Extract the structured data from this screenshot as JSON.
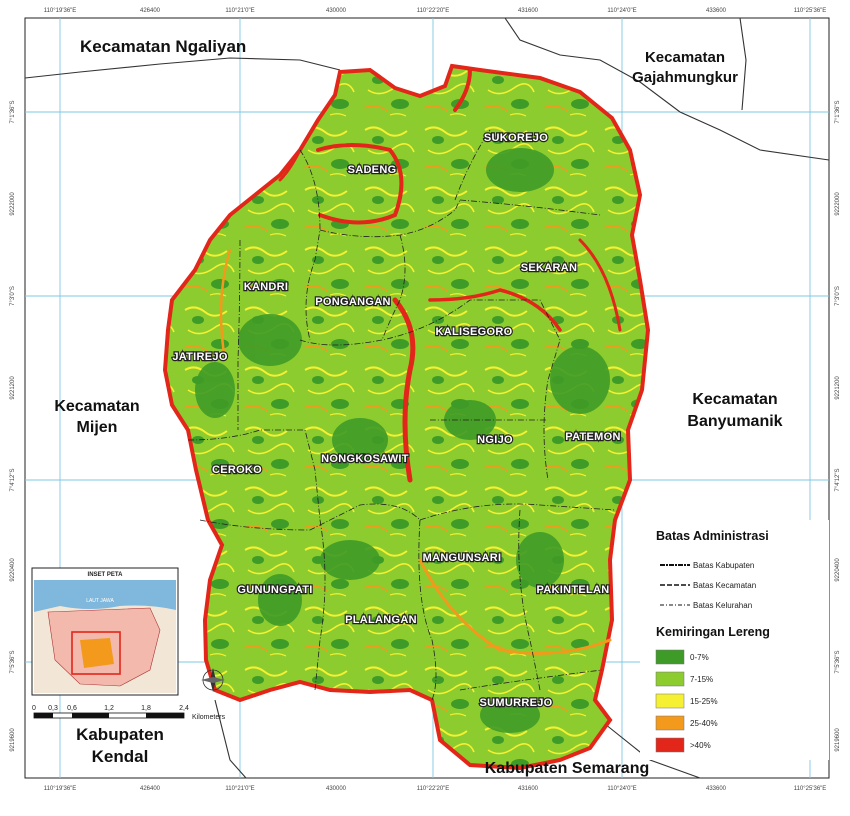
{
  "coords_top": [
    "110°19'36\"E",
    "426400",
    "110°21'0\"E",
    "430000",
    "110°22'20\"E",
    "431600",
    "110°24'0\"E",
    "433600",
    "110°25'36\"E"
  ],
  "coords_bottom": [
    "110°19'36\"E",
    "426400",
    "110°21'0\"E",
    "430000",
    "110°22'20\"E",
    "431600",
    "110°24'0\"E",
    "433600",
    "110°25'36\"E"
  ],
  "coords_left": [
    "7°1'36\"S",
    "9222000",
    "7°3'0\"S",
    "9221200",
    "7°4'12\"S",
    "9220400",
    "7°5'36\"S",
    "9219600"
  ],
  "coords_right": [
    "7°1'36\"S",
    "9222000",
    "7°3'0\"S",
    "9221200",
    "7°4'12\"S",
    "9220400",
    "7°5'36\"S",
    "9219600"
  ],
  "surrounding": {
    "ngaliyan": "Kecamatan Ngaliyan",
    "gajahmungkur_1": "Kecamatan",
    "gajahmungkur_2": "Gajahmungkur",
    "mijen_1": "Kecamatan",
    "mijen_2": "Mijen",
    "banyumanik_1": "Kecamatan",
    "banyumanik_2": "Banyumanik",
    "kendal_1": "Kabupaten",
    "kendal_2": "Kendal",
    "semarang": "Kabupaten Semarang"
  },
  "kelurahan": {
    "sadeng": "SADENG",
    "sukorejo": "SUKOREJO",
    "kandri": "KANDRI",
    "pongangan": "PONGANGAN",
    "sekaran": "SEKARAN",
    "kalisegoro": "KALISEGORO",
    "jatirejo": "JATIREJO",
    "ngijo": "NGIJO",
    "patemon": "PATEMON",
    "ceroko": "CEROKO",
    "nongkosawit": "NONGKOSAWIT",
    "mangunsari": "MANGUNSARI",
    "gunungpati": "GUNUNGPATI",
    "pakintelan": "PAKINTELAN",
    "plalangan": "PLALANGAN",
    "sumurrejo": "SUMURREJO"
  },
  "legend": {
    "admin_title": "Batas Administrasi",
    "admin_items": [
      "Batas Kabupaten",
      "Batas Kecamatan",
      "Batas Kelurahan"
    ],
    "slope_title": "Kemiringan Lereng",
    "slope_items": [
      {
        "label": "0-7%",
        "color": "#3f9b27"
      },
      {
        "label": "7-15%",
        "color": "#8ccc2e"
      },
      {
        "label": "15-25%",
        "color": "#f5f032"
      },
      {
        "label": "25-40%",
        "color": "#f39a1c"
      },
      {
        "label": ">40%",
        "color": "#e3261a"
      }
    ]
  },
  "inset": {
    "title": "INSET PETA",
    "sea_label": "LAUT JAWA"
  },
  "scale": {
    "ticks": [
      "0",
      "0,3",
      "0,6",
      "1,2",
      "1,8",
      "2,4"
    ],
    "unit": "Kilometers"
  },
  "colors": {
    "slope_low": "#3f9b27",
    "slope_mid": "#8ccc2e",
    "slope_high": "#e3261a",
    "grid": "#7ec8e3"
  }
}
